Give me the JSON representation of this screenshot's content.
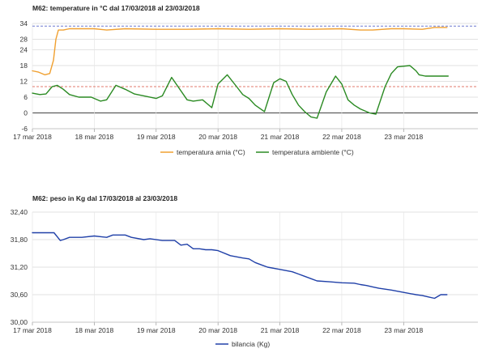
{
  "chart_data": [
    {
      "type": "line",
      "title": "M62: temperature in °C dal 17/03/2018 al 23/03/2018",
      "xlabel": "",
      "ylabel": "",
      "x_tick_labels": [
        "17 mar 2018",
        "18 mar 2018",
        "19 mar 2018",
        "20 mar 2018",
        "21 mar 2018",
        "22 mar 2018",
        "23 mar 2018"
      ],
      "y_tick_labels": [
        "34",
        "28",
        "24",
        "18",
        "12",
        "6",
        "0",
        "-6"
      ],
      "y_tick_values": [
        34,
        28,
        24,
        18,
        12,
        6,
        0,
        -6
      ],
      "x_range_days": [
        0,
        7
      ],
      "ylim": [
        -6,
        34
      ],
      "grid": true,
      "legend_position": "bottom",
      "reference_lines": [
        {
          "y": 33,
          "color": "#6f7ad0"
        },
        {
          "y": 10,
          "color": "#e07a6c"
        }
      ],
      "series": [
        {
          "name": "temperatura arnia (°C)",
          "color": "#f0a030",
          "x": [
            0,
            0.1,
            0.2,
            0.28,
            0.34,
            0.38,
            0.42,
            0.5,
            0.6,
            0.8,
            1.0,
            1.2,
            1.5,
            2.0,
            2.5,
            3.0,
            3.5,
            4.0,
            4.5,
            5.0,
            5.3,
            5.5,
            5.8,
            6.0,
            6.3,
            6.5,
            6.7
          ],
          "y": [
            16,
            15.5,
            14.5,
            15,
            20,
            28,
            31.5,
            31.5,
            32,
            32,
            32,
            31.5,
            32,
            31.8,
            31.8,
            32,
            31.8,
            32,
            31.8,
            32,
            31.5,
            31.5,
            32,
            32,
            31.8,
            32.5,
            32.5
          ]
        },
        {
          "name": "temperatura ambiente (°C)",
          "color": "#2a8a22",
          "x": [
            0,
            0.12,
            0.22,
            0.32,
            0.4,
            0.5,
            0.6,
            0.75,
            0.95,
            1.1,
            1.2,
            1.35,
            1.5,
            1.65,
            1.8,
            2.0,
            2.1,
            2.25,
            2.5,
            2.6,
            2.75,
            2.9,
            3.0,
            3.15,
            3.3,
            3.4,
            3.5,
            3.6,
            3.75,
            3.9,
            4.0,
            4.1,
            4.2,
            4.3,
            4.4,
            4.5,
            4.6,
            4.75,
            4.9,
            5.0,
            5.1,
            5.2,
            5.3,
            5.45,
            5.55,
            5.7,
            5.8,
            5.9,
            6.1,
            6.2,
            6.25,
            6.35,
            6.5,
            6.65,
            6.72
          ],
          "y": [
            7.5,
            7,
            7.2,
            10,
            10.5,
            9,
            7,
            6,
            6,
            4.5,
            5,
            10.5,
            9,
            7.2,
            6.5,
            5.5,
            6.5,
            13.5,
            5,
            4.5,
            5,
            2,
            11,
            14.5,
            10,
            7,
            5.5,
            3,
            0.5,
            11.5,
            13,
            12,
            7,
            3,
            0.5,
            -1.5,
            -2,
            8,
            14,
            11,
            5,
            3,
            1.5,
            0,
            -0.5,
            10,
            15,
            17.5,
            18,
            16,
            14.5,
            14,
            14,
            14,
            14
          ]
        }
      ]
    },
    {
      "type": "line",
      "title": "M62: peso in Kg dal 17/03/2018 al 23/03/2018",
      "xlabel": "",
      "ylabel": "",
      "x_tick_labels": [
        "17 mar 2018",
        "18 mar 2018",
        "19 mar 2018",
        "20 mar 2018",
        "21 mar 2018",
        "22 mar 2018",
        "23 mar 2018"
      ],
      "y_tick_labels": [
        "32,40",
        "31,80",
        "31,20",
        "30,60",
        "30,00"
      ],
      "y_tick_values": [
        32.4,
        31.8,
        31.2,
        30.6,
        30.0
      ],
      "x_range_days": [
        0,
        7
      ],
      "ylim": [
        30.0,
        32.4
      ],
      "grid": true,
      "legend_position": "bottom",
      "series": [
        {
          "name": "bilancia (Kg)",
          "color": "#2040a8",
          "x": [
            0,
            0.2,
            0.35,
            0.45,
            0.5,
            0.6,
            0.8,
            1.0,
            1.2,
            1.3,
            1.5,
            1.6,
            1.8,
            1.9,
            2.1,
            2.3,
            2.4,
            2.5,
            2.6,
            2.7,
            2.8,
            2.9,
            3.0,
            3.2,
            3.4,
            3.5,
            3.6,
            3.7,
            3.8,
            4.0,
            4.2,
            4.3,
            4.4,
            4.5,
            4.6,
            4.8,
            5.0,
            5.2,
            5.3,
            5.4,
            5.5,
            5.6,
            5.8,
            6.0,
            6.2,
            6.3,
            6.4,
            6.5,
            6.6,
            6.7
          ],
          "y": [
            31.95,
            31.95,
            31.95,
            31.78,
            31.8,
            31.85,
            31.85,
            31.88,
            31.85,
            31.9,
            31.9,
            31.85,
            31.8,
            31.82,
            31.78,
            31.78,
            31.68,
            31.7,
            31.6,
            31.6,
            31.58,
            31.58,
            31.56,
            31.45,
            31.4,
            31.38,
            31.3,
            31.25,
            31.2,
            31.15,
            31.1,
            31.05,
            31.0,
            30.95,
            30.9,
            30.88,
            30.86,
            30.85,
            30.82,
            30.8,
            30.77,
            30.74,
            30.7,
            30.65,
            30.6,
            30.58,
            30.55,
            30.52,
            30.6,
            30.6
          ]
        }
      ]
    }
  ]
}
